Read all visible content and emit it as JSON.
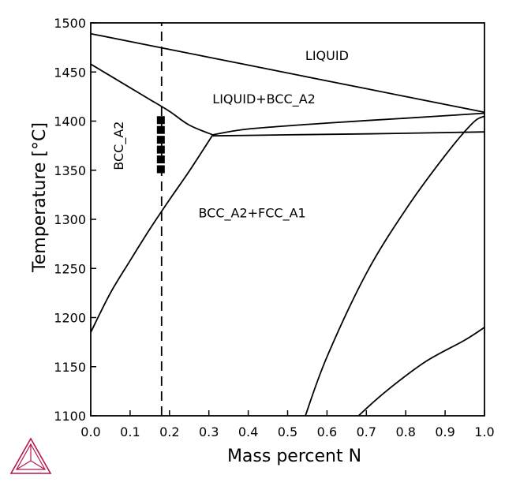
{
  "chart_data": {
    "type": "line",
    "title": "",
    "xlabel": "Mass percent N",
    "ylabel": "Temperature [°C]",
    "xlim": [
      0.0,
      1.0
    ],
    "ylim": [
      1100,
      1500
    ],
    "x_ticks": [
      0.0,
      0.1,
      0.2,
      0.3,
      0.4,
      0.5,
      0.6,
      0.7,
      0.8,
      0.9,
      1.0
    ],
    "x_tick_labels": [
      "0.0",
      "0.1",
      "0.2",
      "0.3",
      "0.4",
      "0.5",
      "0.6",
      "0.7",
      "0.8",
      "0.9",
      "1.0"
    ],
    "y_ticks": [
      1100,
      1150,
      1200,
      1250,
      1300,
      1350,
      1400,
      1450,
      1500
    ],
    "y_tick_labels": [
      "1100",
      "1150",
      "1200",
      "1250",
      "1300",
      "1350",
      "1400",
      "1450",
      "1500"
    ],
    "grid": false,
    "legend": "none",
    "series": [
      {
        "values": [
          [
            0.0,
            1489
          ],
          [
            0.2,
            1473
          ],
          [
            0.4,
            1457
          ],
          [
            0.6,
            1441
          ],
          [
            0.8,
            1425
          ],
          [
            1.0,
            1409
          ]
        ]
      },
      {
        "values": [
          [
            0.0,
            1458
          ],
          [
            0.05,
            1446
          ],
          [
            0.1,
            1434
          ],
          [
            0.15,
            1422
          ],
          [
            0.2,
            1410
          ],
          [
            0.25,
            1396
          ],
          [
            0.31,
            1386
          ]
        ]
      },
      {
        "values": [
          [
            0.0,
            1185
          ],
          [
            0.05,
            1225
          ],
          [
            0.1,
            1258
          ],
          [
            0.15,
            1290
          ],
          [
            0.2,
            1320
          ],
          [
            0.25,
            1349
          ],
          [
            0.31,
            1386
          ]
        ]
      },
      {
        "values": [
          [
            0.31,
            1386
          ],
          [
            0.4,
            1392
          ],
          [
            0.6,
            1398
          ],
          [
            0.8,
            1403
          ],
          [
            1.0,
            1408
          ]
        ]
      },
      {
        "values": [
          [
            0.31,
            1385
          ],
          [
            0.5,
            1386
          ],
          [
            0.7,
            1387
          ],
          [
            1.0,
            1389
          ]
        ]
      },
      {
        "values": [
          [
            0.545,
            1100
          ],
          [
            0.6,
            1160
          ],
          [
            0.7,
            1245
          ],
          [
            0.8,
            1310
          ],
          [
            0.9,
            1365
          ],
          [
            0.97,
            1398
          ],
          [
            1.0,
            1405
          ]
        ]
      },
      {
        "values": [
          [
            0.68,
            1100
          ],
          [
            0.75,
            1125
          ],
          [
            0.85,
            1155
          ],
          [
            0.95,
            1177
          ],
          [
            1.0,
            1190
          ]
        ]
      },
      {
        "values": [
          [
            0.18,
            1100
          ],
          [
            0.18,
            1500
          ]
        ]
      }
    ],
    "markers": {
      "shape": "square",
      "x": 0.178,
      "y": [
        1401,
        1391,
        1381,
        1371,
        1361,
        1351
      ]
    },
    "annotations": [
      {
        "text": "LIQUID",
        "x": 0.6,
        "y": 1467
      },
      {
        "text": "LIQUID+BCC_A2",
        "x": 0.44,
        "y": 1423
      },
      {
        "text": "BCC_A2",
        "x": 0.07,
        "y": 1375
      },
      {
        "text": "BCC_A2+FCC_A1",
        "x": 0.41,
        "y": 1307
      }
    ],
    "colors": {
      "lines": "#000000",
      "markers": "#000000",
      "logo": "#b5174b"
    }
  },
  "logo": {
    "icon": "thermo-calc-logo-icon"
  }
}
